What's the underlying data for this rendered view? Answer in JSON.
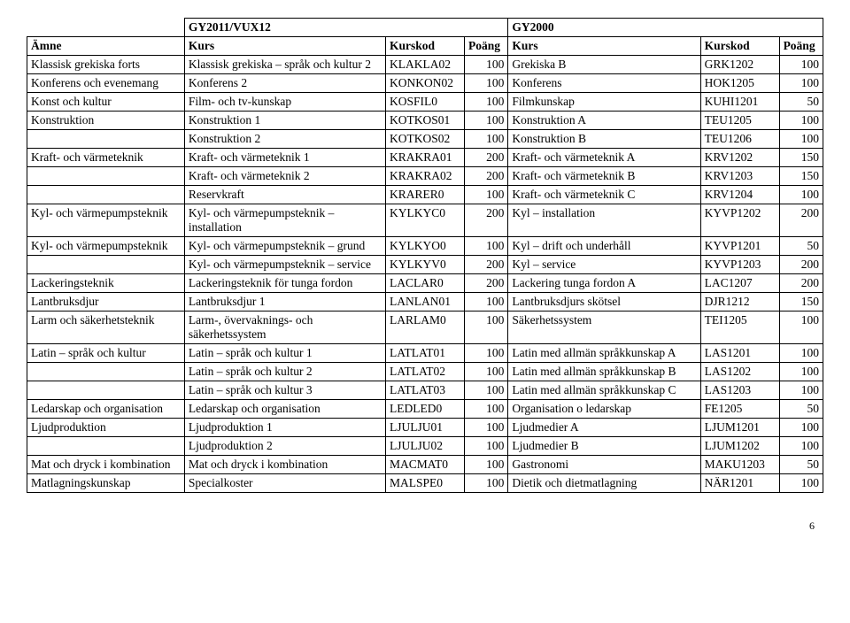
{
  "header": {
    "gy2011": "GY2011/VUX12",
    "gy2000": "GY2000",
    "amne": "Ämne",
    "kurs": "Kurs",
    "kurskod": "Kurskod",
    "poang": "Poäng"
  },
  "rows": [
    {
      "amne": "Klassisk grekiska forts",
      "kurs": "Klassisk grekiska – språk och kultur 2",
      "kod": "KLAKLA02",
      "pts": "100",
      "kurs2": "Grekiska B",
      "kod2": "GRK1202",
      "pts2": "100"
    },
    {
      "amne": "Konferens och evenemang",
      "kurs": "Konferens 2",
      "kod": "KONKON02",
      "pts": "100",
      "kurs2": "Konferens",
      "kod2": "HOK1205",
      "pts2": "100"
    },
    {
      "amne": "Konst och kultur",
      "kurs": "Film- och tv-kunskap",
      "kod": "KOSFIL0",
      "pts": "100",
      "kurs2": "Filmkunskap",
      "kod2": "KUHI1201",
      "pts2": "50"
    },
    {
      "amne": "Konstruktion",
      "kurs": "Konstruktion 1",
      "kod": "KOTKOS01",
      "pts": "100",
      "kurs2": "Konstruktion A",
      "kod2": "TEU1205",
      "pts2": "100"
    },
    {
      "amne": "",
      "kurs": "Konstruktion 2",
      "kod": "KOTKOS02",
      "pts": "100",
      "kurs2": "Konstruktion B",
      "kod2": "TEU1206",
      "pts2": "100"
    },
    {
      "amne": "Kraft- och värmeteknik",
      "kurs": "Kraft- och värmeteknik 1",
      "kod": "KRAKRA01",
      "pts": "200",
      "kurs2": "Kraft- och värmeteknik A",
      "kod2": "KRV1202",
      "pts2": "150"
    },
    {
      "amne": "",
      "kurs": "Kraft- och värmeteknik 2",
      "kod": "KRAKRA02",
      "pts": "200",
      "kurs2": "Kraft- och värmeteknik B",
      "kod2": "KRV1203",
      "pts2": "150"
    },
    {
      "amne": "",
      "kurs": "Reservkraft",
      "kod": "KRARER0",
      "pts": "100",
      "kurs2": "Kraft- och värmeteknik C",
      "kod2": "KRV1204",
      "pts2": "100"
    },
    {
      "amne": "Kyl- och värmepumpsteknik",
      "kurs": "Kyl- och värmepumpsteknik – installation",
      "kod": "KYLKYC0",
      "pts": "200",
      "kurs2": "Kyl – installation",
      "kod2": "KYVP1202",
      "pts2": "200"
    },
    {
      "amne": "Kyl- och värmepumpsteknik",
      "kurs": "Kyl- och värmepumpsteknik – grund",
      "kod": "KYLKYO0",
      "pts": "100",
      "kurs2": "Kyl – drift och underhåll",
      "kod2": "KYVP1201",
      "pts2": "50"
    },
    {
      "amne": "",
      "kurs": "Kyl- och värmepumpsteknik – service",
      "kod": "KYLKYV0",
      "pts": "200",
      "kurs2": "Kyl – service",
      "kod2": "KYVP1203",
      "pts2": "200"
    },
    {
      "amne": "Lackeringsteknik",
      "kurs": "Lackeringsteknik för tunga fordon",
      "kod": "LACLAR0",
      "pts": "200",
      "kurs2": "Lackering tunga fordon A",
      "kod2": "LAC1207",
      "pts2": "200"
    },
    {
      "amne": "Lantbruksdjur",
      "kurs": "Lantbruksdjur 1",
      "kod": "LANLAN01",
      "pts": "100",
      "kurs2": "Lantbruksdjurs skötsel",
      "kod2": "DJR1212",
      "pts2": "150"
    },
    {
      "amne": "Larm och säkerhetsteknik",
      "kurs": "Larm-, övervaknings- och säkerhetssystem",
      "kod": "LARLAM0",
      "pts": "100",
      "kurs2": "Säkerhetssystem",
      "kod2": "TEI1205",
      "pts2": "100"
    },
    {
      "amne": "Latin – språk och kultur",
      "kurs": "Latin – språk och kultur 1",
      "kod": "LATLAT01",
      "pts": "100",
      "kurs2": "Latin med allmän språkkunskap A",
      "kod2": "LAS1201",
      "pts2": "100"
    },
    {
      "amne": "",
      "kurs": "Latin – språk och kultur 2",
      "kod": "LATLAT02",
      "pts": "100",
      "kurs2": "Latin med allmän språkkunskap B",
      "kod2": "LAS1202",
      "pts2": "100"
    },
    {
      "amne": "",
      "kurs": "Latin – språk och kultur 3",
      "kod": "LATLAT03",
      "pts": "100",
      "kurs2": "Latin med allmän språkkunskap C",
      "kod2": "LAS1203",
      "pts2": "100"
    },
    {
      "amne": "Ledarskap och organisation",
      "kurs": "Ledarskap och organisation",
      "kod": "LEDLED0",
      "pts": "100",
      "kurs2": "Organisation o ledarskap",
      "kod2": "FE1205",
      "pts2": "50"
    },
    {
      "amne": "Ljudproduktion",
      "kurs": "Ljudproduktion 1",
      "kod": "LJULJU01",
      "pts": "100",
      "kurs2": "Ljudmedier A",
      "kod2": "LJUM1201",
      "pts2": "100"
    },
    {
      "amne": "",
      "kurs": "Ljudproduktion 2",
      "kod": "LJULJU02",
      "pts": "100",
      "kurs2": "Ljudmedier B",
      "kod2": "LJUM1202",
      "pts2": "100"
    },
    {
      "amne": "Mat och dryck i kombination",
      "kurs": "Mat och dryck i kombination",
      "kod": "MACMAT0",
      "pts": "100",
      "kurs2": "Gastronomi",
      "kod2": "MAKU1203",
      "pts2": "50"
    },
    {
      "amne": "Matlagningskunskap",
      "kurs": "Specialkoster",
      "kod": "MALSPE0",
      "pts": "100",
      "kurs2": "Dietik och dietmatlagning",
      "kod2": "NÄR1201",
      "pts2": "100"
    }
  ],
  "pageNumber": "6"
}
